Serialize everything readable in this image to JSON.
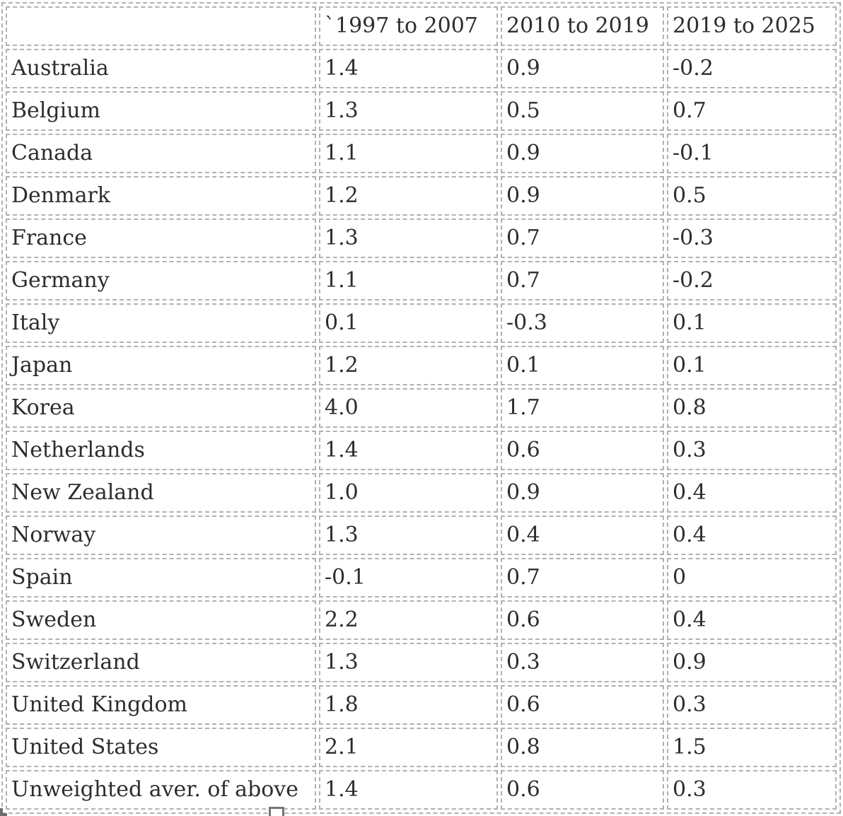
{
  "table": {
    "columns": [
      "",
      "`1997 to 2007",
      "2010 to 2019",
      "2019 to 2025"
    ],
    "rows": [
      {
        "label": "Australia",
        "values": [
          "1.4",
          "0.9",
          "-0.2"
        ]
      },
      {
        "label": "Belgium",
        "values": [
          "1.3",
          "0.5",
          "0.7"
        ]
      },
      {
        "label": "Canada",
        "values": [
          "1.1",
          "0.9",
          "-0.1"
        ]
      },
      {
        "label": "Denmark",
        "values": [
          "1.2",
          "0.9",
          "0.5"
        ]
      },
      {
        "label": "France",
        "values": [
          "1.3",
          "0.7",
          "-0.3"
        ]
      },
      {
        "label": "Germany",
        "values": [
          "1.1",
          "0.7",
          "-0.2"
        ]
      },
      {
        "label": "Italy",
        "values": [
          "0.1",
          "-0.3",
          "0.1"
        ]
      },
      {
        "label": "Japan",
        "values": [
          "1.2",
          "0.1",
          "0.1"
        ]
      },
      {
        "label": "Korea",
        "values": [
          "4.0",
          "1.7",
          "0.8"
        ]
      },
      {
        "label": "Netherlands",
        "values": [
          "1.4",
          "0.6",
          "0.3"
        ]
      },
      {
        "label": "New Zealand",
        "values": [
          "1.0",
          "0.9",
          "0.4"
        ]
      },
      {
        "label": "Norway",
        "values": [
          "1.3",
          "0.4",
          "0.4"
        ]
      },
      {
        "label": "Spain",
        "values": [
          "-0.1",
          "0.7",
          "0"
        ]
      },
      {
        "label": "Sweden",
        "values": [
          "2.2",
          "0.6",
          "0.4"
        ]
      },
      {
        "label": "Switzerland",
        "values": [
          "1.3",
          "0.3",
          "0.9"
        ]
      },
      {
        "label": "United Kingdom",
        "values": [
          "1.8",
          "0.6",
          "0.3"
        ]
      },
      {
        "label": "United States",
        "values": [
          "2.1",
          "0.8",
          "1.5"
        ]
      },
      {
        "label": "Unweighted aver. of above",
        "values": [
          "1.4",
          "0.6",
          "0.3"
        ]
      }
    ]
  },
  "chart_data": {
    "type": "table",
    "title": "",
    "columns": [
      "",
      "`1997 to 2007",
      "2010 to 2019",
      "2019 to 2025"
    ],
    "rows": [
      [
        "Australia",
        1.4,
        0.9,
        -0.2
      ],
      [
        "Belgium",
        1.3,
        0.5,
        0.7
      ],
      [
        "Canada",
        1.1,
        0.9,
        -0.1
      ],
      [
        "Denmark",
        1.2,
        0.9,
        0.5
      ],
      [
        "France",
        1.3,
        0.7,
        -0.3
      ],
      [
        "Germany",
        1.1,
        0.7,
        -0.2
      ],
      [
        "Italy",
        0.1,
        -0.3,
        0.1
      ],
      [
        "Japan",
        1.2,
        0.1,
        0.1
      ],
      [
        "Korea",
        4.0,
        1.7,
        0.8
      ],
      [
        "Netherlands",
        1.4,
        0.6,
        0.3
      ],
      [
        "New Zealand",
        1.0,
        0.9,
        0.4
      ],
      [
        "Norway",
        1.3,
        0.4,
        0.4
      ],
      [
        "Spain",
        -0.1,
        0.7,
        0
      ],
      [
        "Sweden",
        2.2,
        0.6,
        0.4
      ],
      [
        "Switzerland",
        1.3,
        0.3,
        0.9
      ],
      [
        "United Kingdom",
        1.8,
        0.6,
        0.3
      ],
      [
        "United States",
        2.1,
        0.8,
        1.5
      ],
      [
        "Unweighted aver. of above",
        1.4,
        0.6,
        0.3
      ]
    ]
  },
  "colors": {
    "cell_border": "#b1b1b1",
    "text": "#2d2d2d",
    "handle": "#757575",
    "background": "#ffffff"
  }
}
